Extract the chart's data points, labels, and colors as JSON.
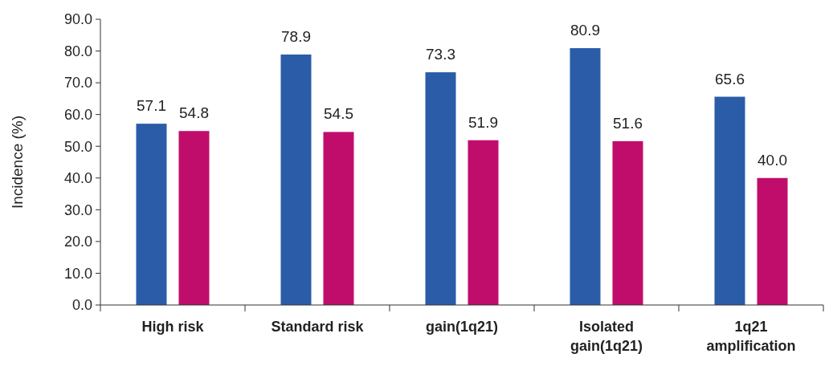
{
  "chart_data": {
    "type": "bar",
    "ylabel": "Incidence (%)",
    "categories": [
      "High risk",
      "Standard risk",
      "gain(1q21)",
      "Isolated gain(1q21)",
      "1q21 amplification"
    ],
    "series": [
      {
        "color": "#2a5ca8",
        "values": [
          57.1,
          78.9,
          73.3,
          80.9,
          65.6
        ],
        "value_labels": [
          "57.1",
          "78.9",
          "73.3",
          "80.9",
          "65.6"
        ]
      },
      {
        "color": "#c00d6b",
        "values": [
          54.8,
          54.5,
          51.9,
          51.6,
          40.0
        ],
        "value_labels": [
          "54.8",
          "54.5",
          "51.9",
          "51.6",
          "40.0"
        ]
      }
    ],
    "ylim": [
      0,
      90
    ],
    "yticks": [
      {
        "value": 0,
        "label": "0.0"
      },
      {
        "value": 10,
        "label": "10.0"
      },
      {
        "value": 20,
        "label": "20.0"
      },
      {
        "value": 30,
        "label": "30.0"
      },
      {
        "value": 40,
        "label": "40.0"
      },
      {
        "value": 50,
        "label": "50.0"
      },
      {
        "value": 60,
        "label": "60.0"
      },
      {
        "value": 70,
        "label": "70.0"
      },
      {
        "value": 80,
        "label": "80.0"
      },
      {
        "value": 90,
        "label": "90.0"
      }
    ],
    "grid": false
  }
}
